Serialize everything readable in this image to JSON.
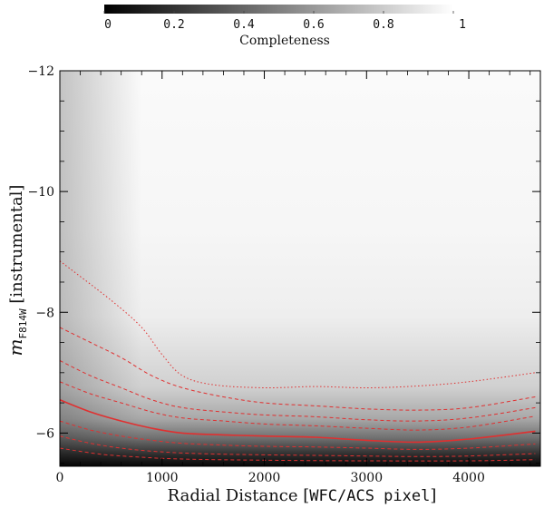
{
  "chart_data": [
    {
      "type": "colorbar",
      "label": "Completeness",
      "ticks": [
        "0",
        "0.2",
        "0.4",
        "0.6",
        "0.8",
        "1"
      ],
      "range": [
        0,
        1
      ],
      "colormap": "greyscale (0 = black, 1 = white)"
    },
    {
      "type": "heatmap",
      "xlabel_main": "Radial Distance [",
      "xlabel_mono": "WFC/ACS pixel",
      "xlabel_end": "]",
      "ylabel_m": "m",
      "ylabel_sub": "F814W",
      "ylabel_rest": " [instrumental]",
      "xlim": [
        0,
        4700
      ],
      "ylim": [
        -5.45,
        -12
      ],
      "xticks": [
        "0",
        "1000",
        "2000",
        "3000",
        "4000"
      ],
      "yticks": [
        "−12",
        "−10",
        "−8",
        "−6"
      ],
      "contour_color": "#e03030",
      "contours": [
        {
          "level": 0.9,
          "style": "dotted",
          "x": [
            0,
            500,
            800,
            1000,
            1200,
            1500,
            2000,
            2500,
            3000,
            3500,
            4000,
            4650
          ],
          "y": [
            -8.85,
            -8.2,
            -7.75,
            -7.3,
            -6.95,
            -6.8,
            -6.75,
            -6.77,
            -6.75,
            -6.78,
            -6.85,
            -7.0
          ]
        },
        {
          "level": 0.8,
          "style": "dashed",
          "x": [
            0,
            300,
            600,
            900,
            1200,
            1600,
            2000,
            2500,
            3000,
            3500,
            4000,
            4650
          ],
          "y": [
            -7.75,
            -7.5,
            -7.25,
            -6.95,
            -6.75,
            -6.6,
            -6.5,
            -6.45,
            -6.4,
            -6.38,
            -6.42,
            -6.6
          ]
        },
        {
          "level": 0.7,
          "style": "dashed",
          "x": [
            0,
            300,
            600,
            900,
            1200,
            1600,
            2000,
            2500,
            3000,
            3500,
            4000,
            4650
          ],
          "y": [
            -7.2,
            -6.95,
            -6.75,
            -6.55,
            -6.42,
            -6.35,
            -6.3,
            -6.27,
            -6.22,
            -6.2,
            -6.25,
            -6.42
          ]
        },
        {
          "level": 0.6,
          "style": "dashed",
          "x": [
            0,
            300,
            600,
            900,
            1200,
            1600,
            2000,
            2500,
            3000,
            3500,
            4000,
            4650
          ],
          "y": [
            -6.85,
            -6.65,
            -6.5,
            -6.35,
            -6.25,
            -6.2,
            -6.15,
            -6.12,
            -6.08,
            -6.05,
            -6.1,
            -6.28
          ]
        },
        {
          "level": 0.5,
          "style": "solid",
          "x": [
            0,
            300,
            600,
            900,
            1200,
            1600,
            2000,
            2500,
            3000,
            3500,
            4000,
            4650
          ],
          "y": [
            -6.55,
            -6.35,
            -6.2,
            -6.08,
            -6.0,
            -5.97,
            -5.95,
            -5.93,
            -5.88,
            -5.85,
            -5.9,
            -6.03
          ]
        },
        {
          "level": 0.4,
          "style": "dashed",
          "x": [
            0,
            300,
            600,
            900,
            1200,
            1600,
            2000,
            2500,
            3000,
            3500,
            4000,
            4650
          ],
          "y": [
            -6.2,
            -6.05,
            -5.95,
            -5.88,
            -5.83,
            -5.8,
            -5.78,
            -5.77,
            -5.75,
            -5.73,
            -5.75,
            -5.82
          ]
        },
        {
          "level": 0.3,
          "style": "dashed",
          "x": [
            0,
            300,
            600,
            900,
            1200,
            1600,
            2000,
            2500,
            3000,
            3500,
            4000,
            4650
          ],
          "y": [
            -5.95,
            -5.83,
            -5.75,
            -5.7,
            -5.67,
            -5.65,
            -5.64,
            -5.63,
            -5.62,
            -5.61,
            -5.62,
            -5.66
          ]
        },
        {
          "level": 0.2,
          "style": "dashed",
          "x": [
            0,
            400,
            800,
            1200,
            2000,
            3000,
            4000,
            4650
          ],
          "y": [
            -5.75,
            -5.65,
            -5.6,
            -5.57,
            -5.55,
            -5.54,
            -5.54,
            -5.56
          ]
        }
      ]
    }
  ]
}
